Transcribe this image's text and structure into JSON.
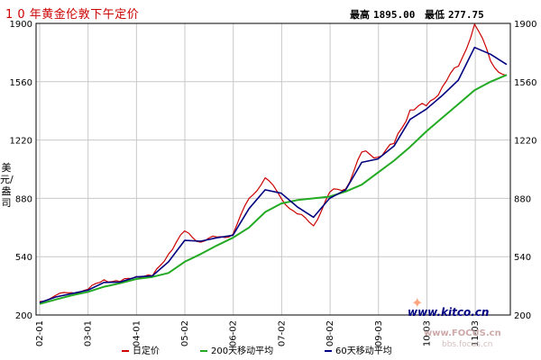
{
  "header": {
    "title": "1 0 年黄金伦敦下午定价",
    "high_label": "最高",
    "high_value": "1895.00",
    "low_label": "最低",
    "low_value": "277.75"
  },
  "axis": {
    "ylabel": "美元/盎司"
  },
  "watermark": {
    "kitco": "www.kitco.cn",
    "focus": "www.FOCUS.cn",
    "focus2": "bbs.focus.cn"
  },
  "colors": {
    "daily": "#cc0000",
    "ma200": "#22aa22",
    "ma60": "#000080",
    "grid": "#c8c8c8",
    "frame": "#000000"
  },
  "chart_data": {
    "type": "line",
    "title": "1 0 年黄金伦敦下午定价",
    "ylabel": "美元/盎司",
    "ylim": [
      200,
      1900
    ],
    "yticks": [
      200,
      540,
      880,
      1220,
      1560,
      1900
    ],
    "xticks": [
      "02-01",
      "03-01",
      "04-01",
      "05-02",
      "06-02",
      "07-02",
      "08-02",
      "09-03",
      "10-03",
      "11-03"
    ],
    "grid": true,
    "legend": "bottom",
    "x": [
      "02-01",
      "02-07",
      "03-01",
      "03-07",
      "04-01",
      "04-07",
      "05-02",
      "05-07",
      "06-02",
      "06-05",
      "06-07",
      "07-02",
      "07-07",
      "08-02",
      "08-03",
      "08-05",
      "08-09",
      "08-11",
      "09-03",
      "09-07",
      "09-12",
      "10-03",
      "10-07",
      "10-11",
      "11-03",
      "11-06",
      "11-08",
      "11-09",
      "11-10",
      "11-12"
    ],
    "series": [
      {
        "name": "日定价",
        "values": [
          278,
          315,
          330,
          350,
          405,
          395,
          425,
          428,
          555,
          690,
          625,
          655,
          670,
          880,
          1000,
          880,
          790,
          720,
          915,
          935,
          1150,
          1120,
          1200,
          1395,
          1420,
          1530,
          1650,
          1895,
          1680,
          1595
        ]
      },
      {
        "name": "200天移动平均",
        "values": [
          265,
          290,
          315,
          335,
          365,
          385,
          410,
          422,
          445,
          510,
          555,
          605,
          650,
          710,
          800,
          850,
          870,
          880,
          890,
          920,
          960,
          1030,
          1100,
          1180,
          1270,
          1350,
          1430,
          1510,
          1560,
          1600
        ]
      },
      {
        "name": "60天移动平均",
        "values": [
          272,
          305,
          325,
          345,
          390,
          392,
          422,
          428,
          510,
          635,
          630,
          650,
          665,
          820,
          930,
          910,
          830,
          770,
          880,
          930,
          1090,
          1110,
          1185,
          1340,
          1400,
          1480,
          1570,
          1760,
          1720,
          1660
        ]
      }
    ]
  }
}
